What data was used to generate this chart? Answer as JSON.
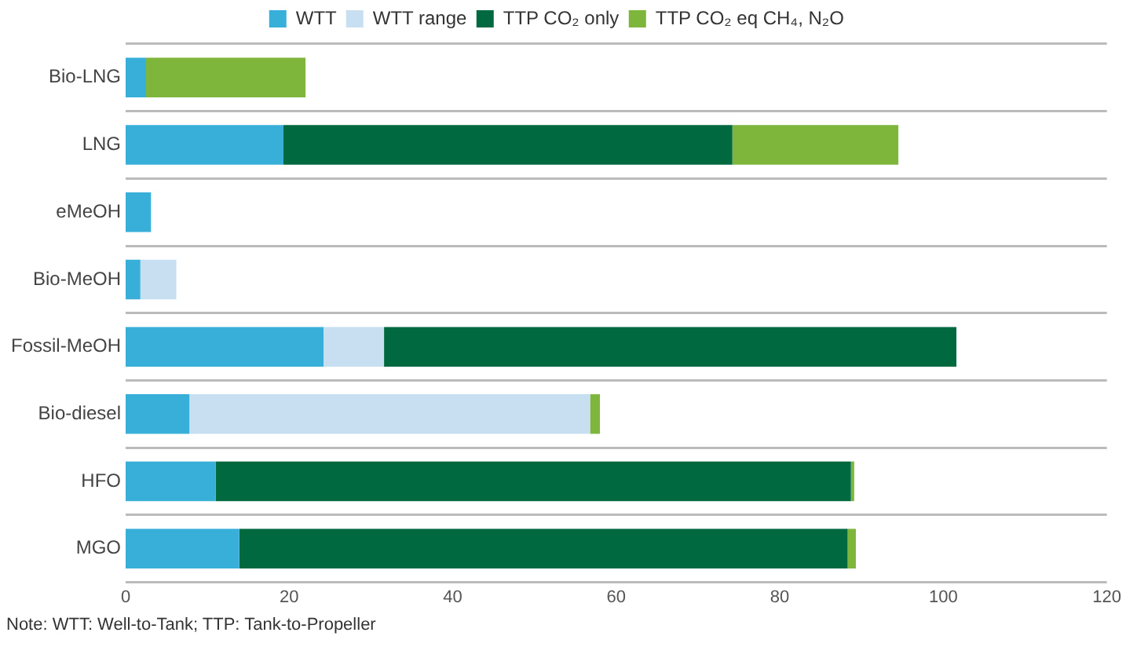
{
  "chart_data": {
    "type": "bar",
    "orientation": "horizontal",
    "stacked": true,
    "categories": [
      "Bio-LNG",
      "LNG",
      "eMeOH",
      "Bio-MeOH",
      "Fossil-MeOH",
      "Bio-diesel",
      "HFO",
      "MGO"
    ],
    "series": [
      {
        "name": "WTT",
        "color": "#38afd8",
        "values": [
          2.5,
          19.3,
          3.1,
          1.8,
          24.2,
          7.8,
          11,
          13.9
        ]
      },
      {
        "name": "WTT range",
        "color": "#c8dff2",
        "values": [
          null,
          null,
          null,
          4.4,
          7.4,
          49,
          null,
          null
        ]
      },
      {
        "name": "TTP CO₂ only",
        "color": "#006940",
        "values": [
          null,
          54.9,
          null,
          null,
          70,
          null,
          77.7,
          74.4
        ]
      },
      {
        "name": "TTP CO₂ eq CH₄, N₂O",
        "color": "#7db63a",
        "values": [
          19.5,
          20.3,
          null,
          null,
          null,
          1.2,
          0.4,
          1
        ]
      }
    ],
    "xlim": [
      0,
      120
    ],
    "xticks": [
      0,
      20,
      40,
      60,
      80,
      100,
      120
    ],
    "grid": "y",
    "legend": "top",
    "annotations": [
      "Note: WTT: Well-to-Tank; TTP: Tank-to-Propeller"
    ]
  }
}
